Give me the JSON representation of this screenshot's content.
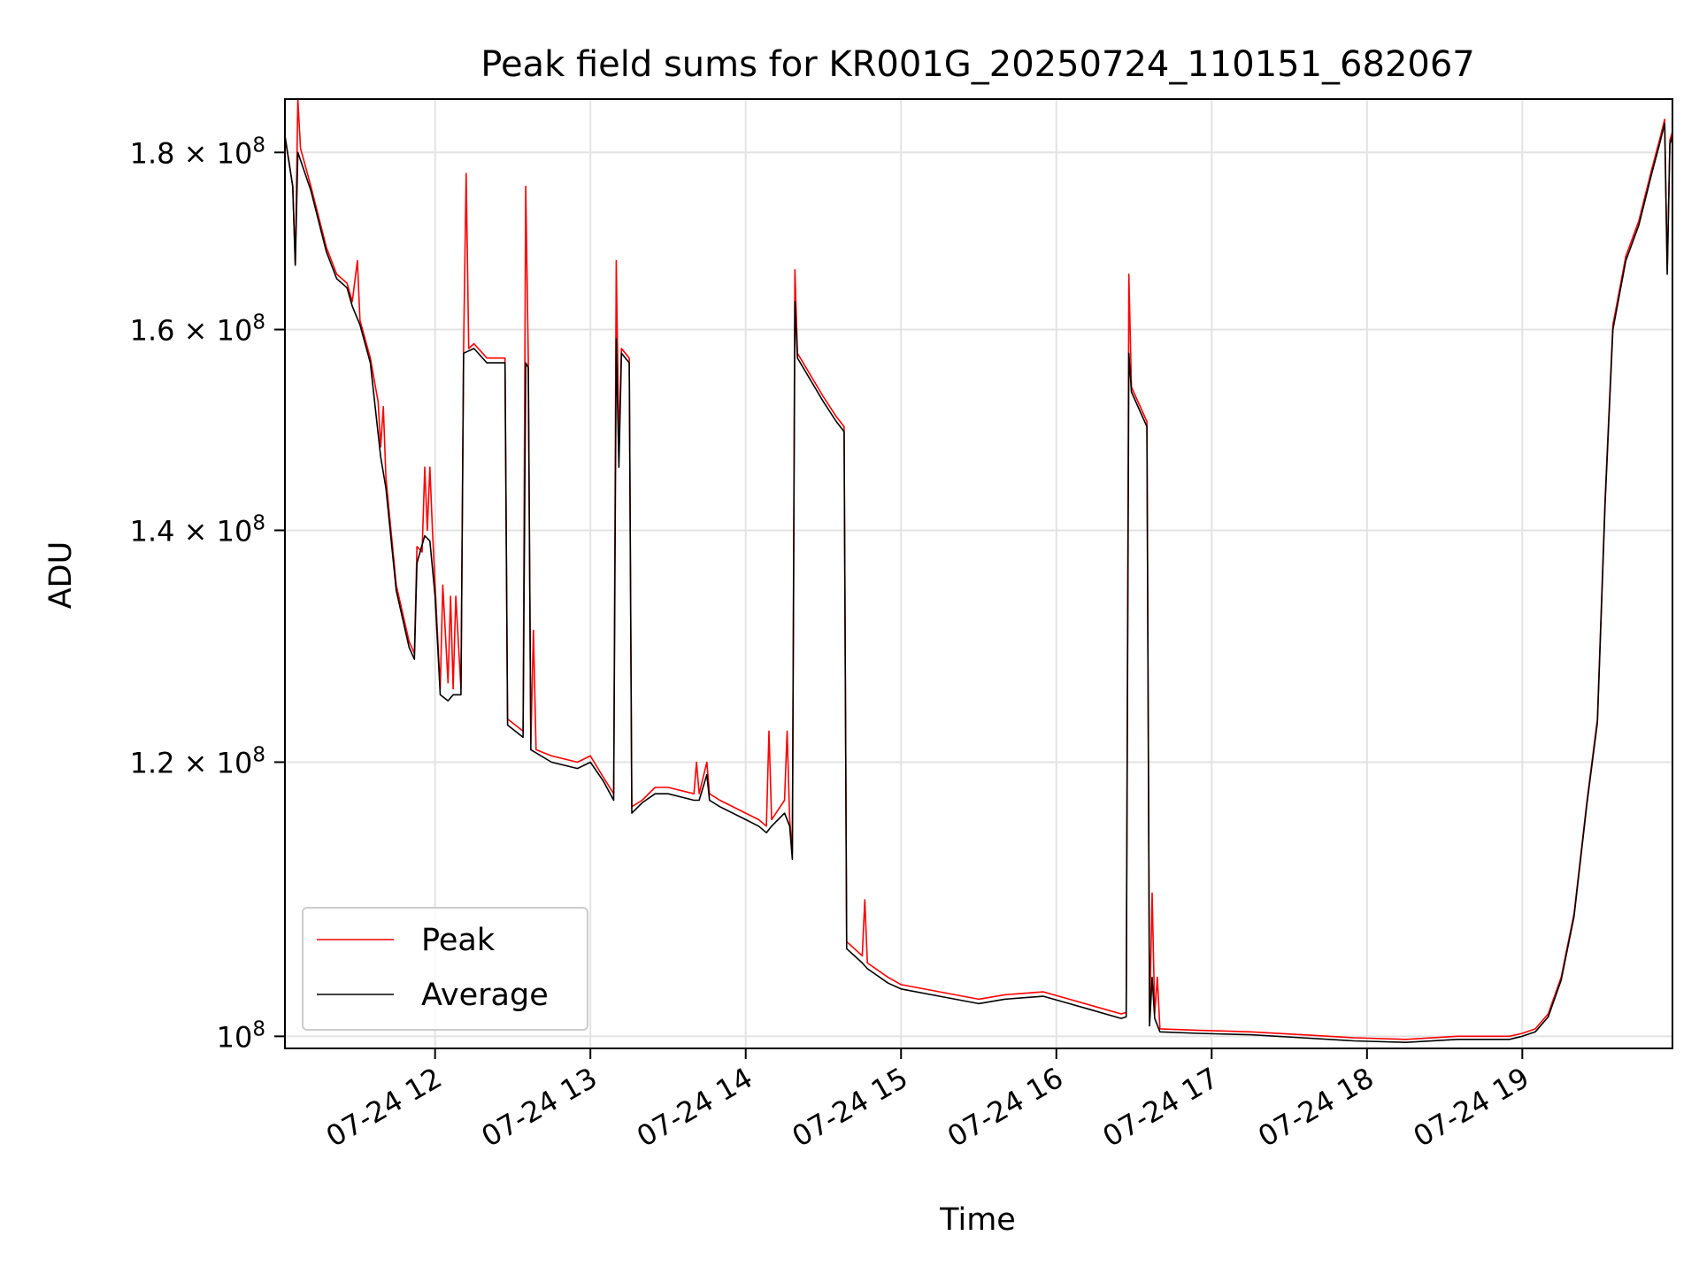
{
  "chart_data": {
    "type": "line",
    "title": "Peak field sums for KR001G_20250724_110151_682067",
    "xlabel": "Time",
    "ylabel": "ADU",
    "yscale": "log",
    "xlim": [
      "2025-07-24T11:02",
      "2025-07-24T19:58"
    ],
    "ylim": [
      99200000,
      186500000
    ],
    "x_ticks": [
      "07-24 12",
      "07-24 13",
      "07-24 14",
      "07-24 15",
      "07-24 16",
      "07-24 17",
      "07-24 18",
      "07-24 19"
    ],
    "y_ticks": [
      {
        "value": 100000000,
        "mantissa": "",
        "exponent": "8"
      },
      {
        "value": 120000000,
        "mantissa": "1.2",
        "exponent": "8"
      },
      {
        "value": 140000000,
        "mantissa": "1.4",
        "exponent": "8"
      },
      {
        "value": 160000000,
        "mantissa": "1.6",
        "exponent": "8"
      },
      {
        "value": 180000000,
        "mantissa": "1.8",
        "exponent": "8"
      }
    ],
    "grid": true,
    "legend_position": "lower-left",
    "series": [
      {
        "name": "Peak",
        "color": "#ff0000",
        "points": [
          [
            "11:02",
            182.0
          ],
          [
            "11:05",
            176.0
          ],
          [
            "11:06",
            167.0
          ],
          [
            "11:07",
            186.5
          ],
          [
            "11:08",
            180.5
          ],
          [
            "11:12",
            176.0
          ],
          [
            "11:18",
            169.0
          ],
          [
            "11:22",
            166.0
          ],
          [
            "11:26",
            165.0
          ],
          [
            "11:28",
            163.0
          ],
          [
            "11:30",
            167.5
          ],
          [
            "11:31",
            161.0
          ],
          [
            "11:35",
            157.0
          ],
          [
            "11:38",
            152.5
          ],
          [
            "11:39",
            148.0
          ],
          [
            "11:40",
            152.0
          ],
          [
            "11:41",
            145.0
          ],
          [
            "11:45",
            135.0
          ],
          [
            "11:50",
            130.0
          ],
          [
            "11:52",
            129.0
          ],
          [
            "11:53",
            138.5
          ],
          [
            "11:55",
            138.0
          ],
          [
            "11:56",
            146.0
          ],
          [
            "11:57",
            140.0
          ],
          [
            "11:58",
            146.0
          ],
          [
            "11:59",
            140.0
          ],
          [
            "12:00",
            135.0
          ],
          [
            "12:02",
            126.0
          ],
          [
            "12:03",
            135.0
          ],
          [
            "12:05",
            126.5
          ],
          [
            "12:06",
            134.0
          ],
          [
            "12:07",
            126.0
          ],
          [
            "12:08",
            134.0
          ],
          [
            "12:10",
            126.0
          ],
          [
            "12:11",
            158.0
          ],
          [
            "12:12",
            177.5
          ],
          [
            "12:13",
            158.0
          ],
          [
            "12:15",
            158.5
          ],
          [
            "12:20",
            157.0
          ],
          [
            "12:27",
            157.0
          ],
          [
            "12:28",
            123.5
          ],
          [
            "12:34",
            122.5
          ],
          [
            "12:35",
            176.0
          ],
          [
            "12:36",
            157.0
          ],
          [
            "12:37",
            121.5
          ],
          [
            "12:38",
            131.0
          ],
          [
            "12:39",
            121.0
          ],
          [
            "12:45",
            120.5
          ],
          [
            "12:55",
            120.0
          ],
          [
            "13:00",
            120.5
          ],
          [
            "13:05",
            118.8
          ],
          [
            "13:09",
            117.5
          ],
          [
            "13:10",
            167.5
          ],
          [
            "13:11",
            148.0
          ],
          [
            "13:12",
            158.0
          ],
          [
            "13:15",
            157.0
          ],
          [
            "13:16",
            116.5
          ],
          [
            "13:20",
            117.0
          ],
          [
            "13:25",
            118.0
          ],
          [
            "13:30",
            118.0
          ],
          [
            "13:40",
            117.5
          ],
          [
            "13:41",
            120.0
          ],
          [
            "13:42",
            117.5
          ],
          [
            "13:45",
            120.0
          ],
          [
            "13:46",
            117.5
          ],
          [
            "13:50",
            117.0
          ],
          [
            "14:00",
            116.0
          ],
          [
            "14:05",
            115.5
          ],
          [
            "14:08",
            115.0
          ],
          [
            "14:09",
            122.5
          ],
          [
            "14:10",
            115.5
          ],
          [
            "14:15",
            117.0
          ],
          [
            "14:16",
            122.5
          ],
          [
            "14:17",
            115.5
          ],
          [
            "14:18",
            113.0
          ],
          [
            "14:19",
            166.5
          ],
          [
            "14:20",
            157.5
          ],
          [
            "14:30",
            153.0
          ],
          [
            "14:35",
            151.0
          ],
          [
            "14:38",
            150.0
          ],
          [
            "14:39",
            106.5
          ],
          [
            "14:45",
            105.5
          ],
          [
            "14:46",
            109.5
          ],
          [
            "14:47",
            105.0
          ],
          [
            "14:55",
            104.0
          ],
          [
            "15:00",
            103.5
          ],
          [
            "15:15",
            103.0
          ],
          [
            "15:30",
            102.5
          ],
          [
            "15:40",
            102.8
          ],
          [
            "15:55",
            103.0
          ],
          [
            "16:05",
            102.5
          ],
          [
            "16:15",
            102.0
          ],
          [
            "16:25",
            101.5
          ],
          [
            "16:27",
            101.6
          ],
          [
            "16:28",
            166.0
          ],
          [
            "16:29",
            154.0
          ],
          [
            "16:35",
            150.5
          ],
          [
            "16:36",
            101.0
          ],
          [
            "16:37",
            110.0
          ],
          [
            "16:38",
            101.5
          ],
          [
            "16:39",
            104.0
          ],
          [
            "16:40",
            100.5
          ],
          [
            "16:55",
            100.4
          ],
          [
            "17:15",
            100.3
          ],
          [
            "17:35",
            100.1
          ],
          [
            "17:55",
            99.9
          ],
          [
            "18:15",
            99.8
          ],
          [
            "18:35",
            100.0
          ],
          [
            "18:55",
            100.0
          ],
          [
            "19:00",
            100.2
          ],
          [
            "19:05",
            100.5
          ],
          [
            "19:10",
            101.5
          ],
          [
            "19:15",
            104.0
          ],
          [
            "19:20",
            108.5
          ],
          [
            "19:25",
            117.0
          ],
          [
            "19:29",
            123.5
          ],
          [
            "19:32",
            143.0
          ],
          [
            "19:35",
            160.5
          ],
          [
            "19:40",
            168.0
          ],
          [
            "19:45",
            172.0
          ],
          [
            "19:50",
            178.0
          ],
          [
            "19:53",
            181.5
          ],
          [
            "19:55",
            184.0
          ],
          [
            "19:56",
            166.5
          ],
          [
            "19:57",
            181.5
          ],
          [
            "19:58",
            182.5
          ]
        ]
      },
      {
        "name": "Average",
        "color": "#000000",
        "points": [
          [
            "11:02",
            182.0
          ],
          [
            "11:05",
            176.0
          ],
          [
            "11:06",
            167.0
          ],
          [
            "11:07",
            180.0
          ],
          [
            "11:12",
            175.5
          ],
          [
            "11:18",
            168.5
          ],
          [
            "11:22",
            165.5
          ],
          [
            "11:26",
            164.5
          ],
          [
            "11:28",
            162.5
          ],
          [
            "11:31",
            160.5
          ],
          [
            "11:35",
            156.5
          ],
          [
            "11:39",
            147.0
          ],
          [
            "11:41",
            144.0
          ],
          [
            "11:45",
            134.5
          ],
          [
            "11:50",
            129.5
          ],
          [
            "11:52",
            128.5
          ],
          [
            "11:53",
            137.0
          ],
          [
            "11:56",
            139.5
          ],
          [
            "11:58",
            139.0
          ],
          [
            "12:00",
            134.0
          ],
          [
            "12:02",
            125.5
          ],
          [
            "12:05",
            125.0
          ],
          [
            "12:07",
            125.5
          ],
          [
            "12:10",
            125.5
          ],
          [
            "12:11",
            157.5
          ],
          [
            "12:15",
            158.0
          ],
          [
            "12:20",
            156.5
          ],
          [
            "12:27",
            156.5
          ],
          [
            "12:28",
            123.0
          ],
          [
            "12:34",
            122.0
          ],
          [
            "12:35",
            156.5
          ],
          [
            "12:36",
            156.0
          ],
          [
            "12:37",
            121.0
          ],
          [
            "12:45",
            120.0
          ],
          [
            "12:55",
            119.5
          ],
          [
            "13:00",
            120.0
          ],
          [
            "13:05",
            118.5
          ],
          [
            "13:09",
            117.0
          ],
          [
            "13:10",
            159.0
          ],
          [
            "13:11",
            146.0
          ],
          [
            "13:12",
            157.5
          ],
          [
            "13:15",
            156.5
          ],
          [
            "13:16",
            116.0
          ],
          [
            "13:20",
            116.8
          ],
          [
            "13:25",
            117.5
          ],
          [
            "13:30",
            117.5
          ],
          [
            "13:40",
            117.0
          ],
          [
            "13:42",
            117.0
          ],
          [
            "13:45",
            119.0
          ],
          [
            "13:46",
            117.0
          ],
          [
            "13:50",
            116.5
          ],
          [
            "14:00",
            115.5
          ],
          [
            "14:05",
            115.0
          ],
          [
            "14:08",
            114.5
          ],
          [
            "14:10",
            115.0
          ],
          [
            "14:15",
            116.0
          ],
          [
            "14:17",
            115.0
          ],
          [
            "14:18",
            112.5
          ],
          [
            "14:19",
            163.0
          ],
          [
            "14:20",
            157.0
          ],
          [
            "14:30",
            152.5
          ],
          [
            "14:35",
            150.5
          ],
          [
            "14:38",
            149.5
          ],
          [
            "14:39",
            106.0
          ],
          [
            "14:45",
            105.0
          ],
          [
            "14:47",
            104.6
          ],
          [
            "14:55",
            103.6
          ],
          [
            "15:00",
            103.2
          ],
          [
            "15:15",
            102.7
          ],
          [
            "15:30",
            102.2
          ],
          [
            "15:40",
            102.5
          ],
          [
            "15:55",
            102.7
          ],
          [
            "16:05",
            102.2
          ],
          [
            "16:15",
            101.7
          ],
          [
            "16:25",
            101.2
          ],
          [
            "16:27",
            101.3
          ],
          [
            "16:28",
            157.5
          ],
          [
            "16:29",
            153.5
          ],
          [
            "16:35",
            150.0
          ],
          [
            "16:36",
            100.7
          ],
          [
            "16:37",
            104.0
          ],
          [
            "16:38",
            101.2
          ],
          [
            "16:40",
            100.3
          ],
          [
            "16:55",
            100.2
          ],
          [
            "17:15",
            100.1
          ],
          [
            "17:35",
            99.9
          ],
          [
            "17:55",
            99.7
          ],
          [
            "18:15",
            99.6
          ],
          [
            "18:35",
            99.8
          ],
          [
            "18:55",
            99.8
          ],
          [
            "19:00",
            100.0
          ],
          [
            "19:05",
            100.3
          ],
          [
            "19:10",
            101.3
          ],
          [
            "19:15",
            103.8
          ],
          [
            "19:20",
            108.3
          ],
          [
            "19:25",
            116.8
          ],
          [
            "19:29",
            123.2
          ],
          [
            "19:32",
            142.5
          ],
          [
            "19:35",
            160.0
          ],
          [
            "19:40",
            167.5
          ],
          [
            "19:45",
            171.5
          ],
          [
            "19:50",
            177.5
          ],
          [
            "19:53",
            181.0
          ],
          [
            "19:55",
            183.5
          ],
          [
            "19:56",
            166.0
          ],
          [
            "19:57",
            181.0
          ],
          [
            "19:58",
            182.0
          ]
        ]
      }
    ]
  }
}
